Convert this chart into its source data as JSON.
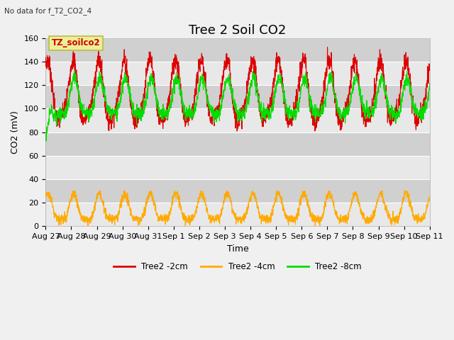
{
  "title": "Tree 2 Soil CO2",
  "subtitle": "No data for f_T2_CO2_4",
  "xlabel": "Time",
  "ylabel": "CO2 (mV)",
  "annotation": "TZ_soilco2",
  "ylim": [
    0,
    160
  ],
  "yticks": [
    0,
    20,
    40,
    60,
    80,
    100,
    120,
    140,
    160
  ],
  "colors": {
    "red": "#dd0000",
    "orange": "#ffaa00",
    "green": "#00dd00",
    "bg_light": "#e8e8e8",
    "bg_dark": "#d0d0d0",
    "annotation_bg": "#eeee99",
    "annotation_border": "#bbbb44",
    "annotation_text": "#cc0000"
  },
  "legend_entries": [
    "Tree2 -2cm",
    "Tree2 -4cm",
    "Tree2 -8cm"
  ],
  "xtick_labels": [
    "Aug 27",
    "Aug 28",
    "Aug 29",
    "Aug 30",
    "Aug 31",
    "Sep 1",
    "Sep 2",
    "Sep 3",
    "Sep 4",
    "Sep 5",
    "Sep 6",
    "Sep 7",
    "Sep 8",
    "Sep 9",
    "Sep 10",
    "Sep 11"
  ],
  "n_points": 2160,
  "red_base": 112,
  "red_amp": 25,
  "red_noise": 4,
  "green_base": 107,
  "green_amp": 15,
  "green_noise": 3,
  "orange_base": 14,
  "orange_amp": 11,
  "orange_noise": 2,
  "period_hours": 24,
  "title_fontsize": 13,
  "axis_fontsize": 9,
  "tick_fontsize": 8,
  "linewidth": 0.8,
  "fig_bg": "#f0f0f0",
  "fig_width": 6.4,
  "fig_height": 4.8,
  "fig_dpi": 100
}
